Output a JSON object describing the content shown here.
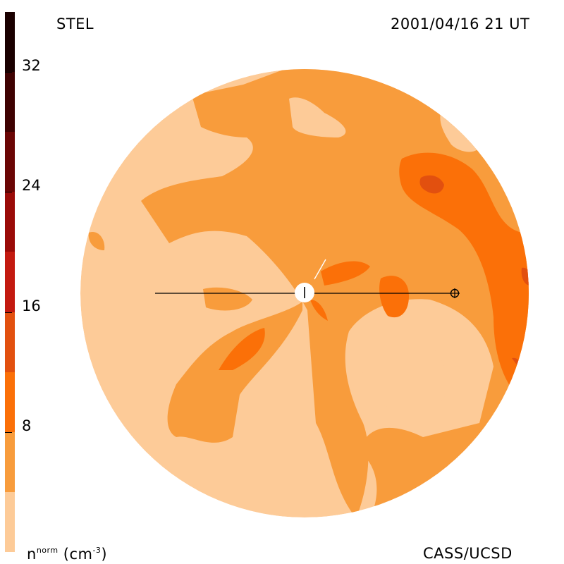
{
  "header": {
    "left_label": "STEL",
    "right_label": "2001/04/16 21 UT"
  },
  "footer": {
    "credit": "CASS/UCSD",
    "unit_base": "n",
    "unit_sup": "norm",
    "unit_tail": "(cm",
    "unit_exp": "-3",
    "unit_close": ")"
  },
  "colorbar": {
    "min": 0,
    "max": 36,
    "ticks": [
      {
        "value": 8,
        "label": "8"
      },
      {
        "value": 16,
        "label": "16"
      },
      {
        "value": 24,
        "label": "24"
      },
      {
        "value": 32,
        "label": "32"
      }
    ],
    "levels": [
      {
        "from": 0,
        "to": 4,
        "color": "#fdcb98"
      },
      {
        "from": 4,
        "to": 8,
        "color": "#f89c3c"
      },
      {
        "from": 8,
        "to": 12,
        "color": "#fb7008"
      },
      {
        "from": 12,
        "to": 16,
        "color": "#e2500f"
      },
      {
        "from": 16,
        "to": 20,
        "color": "#c31a10"
      },
      {
        "from": 20,
        "to": 24,
        "color": "#9a0b08"
      },
      {
        "from": 24,
        "to": 28,
        "color": "#6b0605"
      },
      {
        "from": 28,
        "to": 32,
        "color": "#3f0202"
      },
      {
        "from": 32,
        "to": 36,
        "color": "#1a0000"
      }
    ]
  },
  "markers": {
    "sun_symbol": "sun-disk",
    "earth_symbol": "earth-circle-cross"
  }
}
